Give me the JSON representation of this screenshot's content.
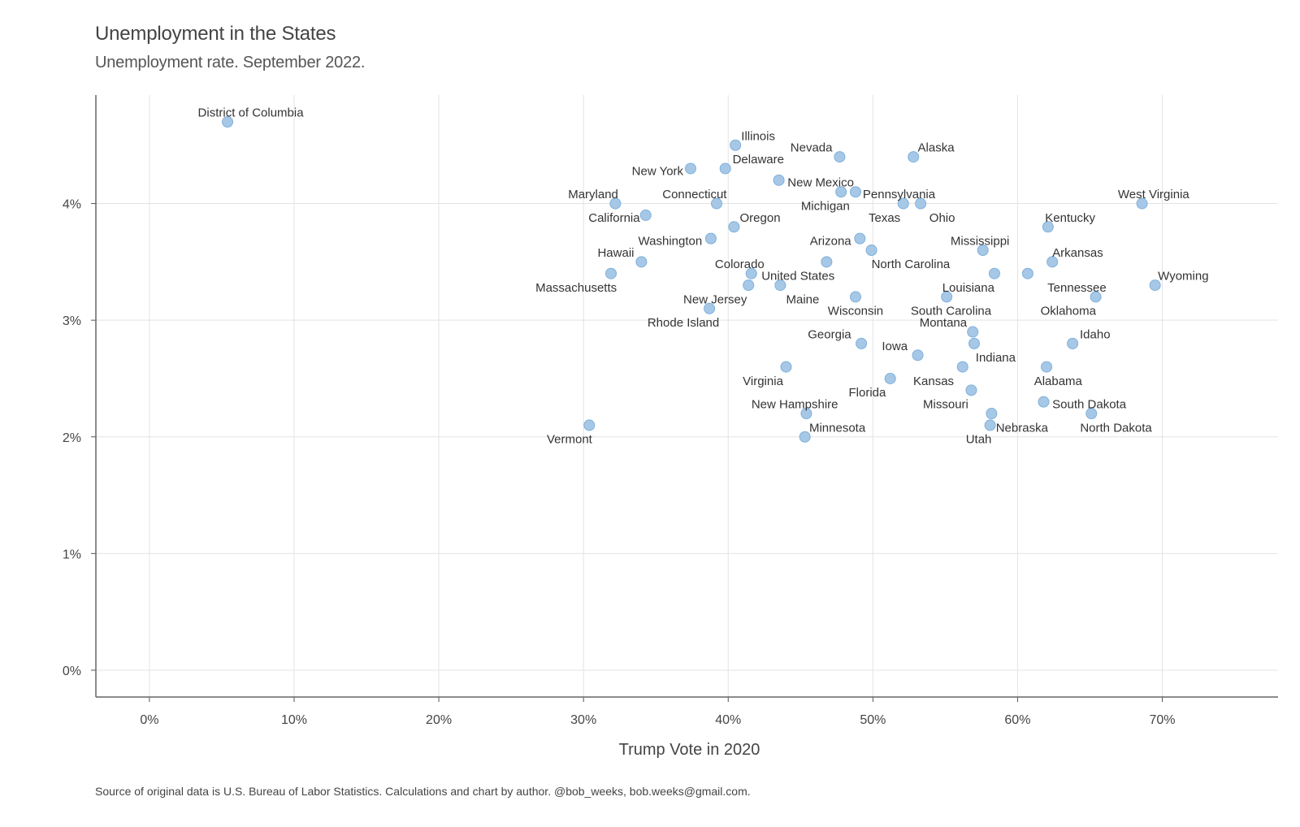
{
  "chart_data": {
    "type": "scatter",
    "title": "Unemployment in the States",
    "subtitle": "Unemployment rate. September 2022.",
    "xlabel": "Trump Vote in 2020",
    "ylabel": "",
    "caption": "Source of original data is U.S. Bureau of Labor Statistics. Calculations and chart by author. @bob_weeks, bob.weeks@gmail.com.",
    "xlim": [
      -3.7,
      78
    ],
    "ylim": [
      -0.23,
      4.93
    ],
    "x_ticks": [
      0,
      10,
      20,
      30,
      40,
      50,
      60,
      70
    ],
    "x_tick_labels": [
      "0%",
      "10%",
      "20%",
      "30%",
      "40%",
      "50%",
      "60%",
      "70%"
    ],
    "y_ticks": [
      0,
      1,
      2,
      3,
      4
    ],
    "y_tick_labels": [
      "0%",
      "1%",
      "2%",
      "3%",
      "4%"
    ],
    "grid": true,
    "point_color": "#a6c8e6",
    "point_stroke": "#7fb0dc",
    "points": [
      {
        "label": "District of Columbia",
        "x": 5.4,
        "y": 4.7,
        "lx": 7,
        "ly": 4.78,
        "anchor": "middle"
      },
      {
        "label": "Illinois",
        "x": 40.5,
        "y": 4.5,
        "lx": 40.9,
        "ly": 4.58,
        "anchor": "start"
      },
      {
        "label": "Nevada",
        "x": 47.7,
        "y": 4.4,
        "lx": 47.2,
        "ly": 4.48,
        "anchor": "end"
      },
      {
        "label": "Alaska",
        "x": 52.8,
        "y": 4.4,
        "lx": 53.1,
        "ly": 4.48,
        "anchor": "start"
      },
      {
        "label": "New York",
        "x": 37.4,
        "y": 4.3,
        "lx": 36.9,
        "ly": 4.28,
        "anchor": "end"
      },
      {
        "label": "Delaware",
        "x": 39.8,
        "y": 4.3,
        "lx": 40.3,
        "ly": 4.38,
        "anchor": "start"
      },
      {
        "label": "New Mexico",
        "x": 43.5,
        "y": 4.2,
        "lx": 44.1,
        "ly": 4.18,
        "anchor": "start"
      },
      {
        "label": "Michigan",
        "x": 47.8,
        "y": 4.1,
        "lx": 48.4,
        "ly": 3.98,
        "anchor": "end"
      },
      {
        "label": "Pennsylvania",
        "x": 48.8,
        "y": 4.1,
        "lx": 49.3,
        "ly": 4.08,
        "anchor": "start"
      },
      {
        "label": "Maryland",
        "x": 32.2,
        "y": 4.0,
        "lx": 32.4,
        "ly": 4.08,
        "anchor": "end"
      },
      {
        "label": "Connecticut",
        "x": 39.2,
        "y": 4.0,
        "lx": 39.9,
        "ly": 4.08,
        "anchor": "end"
      },
      {
        "label": "Texas",
        "x": 52.1,
        "y": 4.0,
        "lx": 51.9,
        "ly": 3.88,
        "anchor": "end"
      },
      {
        "label": "Ohio",
        "x": 53.3,
        "y": 4.0,
        "lx": 53.9,
        "ly": 3.88,
        "anchor": "start"
      },
      {
        "label": "West Virginia",
        "x": 68.6,
        "y": 4.0,
        "lx": 69.4,
        "ly": 4.08,
        "anchor": "middle"
      },
      {
        "label": "California",
        "x": 34.3,
        "y": 3.9,
        "lx": 33.9,
        "ly": 3.88,
        "anchor": "end"
      },
      {
        "label": "Oregon",
        "x": 40.4,
        "y": 3.8,
        "lx": 40.8,
        "ly": 3.88,
        "anchor": "start"
      },
      {
        "label": "Kentucky",
        "x": 62.1,
        "y": 3.8,
        "lx": 61.9,
        "ly": 3.88,
        "anchor": "start"
      },
      {
        "label": "Washington",
        "x": 38.8,
        "y": 3.7,
        "lx": 38.2,
        "ly": 3.68,
        "anchor": "end"
      },
      {
        "label": "Arizona",
        "x": 49.1,
        "y": 3.7,
        "lx": 48.5,
        "ly": 3.68,
        "anchor": "end"
      },
      {
        "label": "Mississippi",
        "x": 57.6,
        "y": 3.6,
        "lx": 57.4,
        "ly": 3.68,
        "anchor": "middle"
      },
      {
        "label": "North Carolina",
        "x": 49.9,
        "y": 3.6,
        "lx": 49.9,
        "ly": 3.48,
        "anchor": "start"
      },
      {
        "label": "Arkansas",
        "x": 62.4,
        "y": 3.5,
        "lx": 62.4,
        "ly": 3.58,
        "anchor": "start"
      },
      {
        "label": "Hawaii",
        "x": 34.0,
        "y": 3.5,
        "lx": 33.5,
        "ly": 3.58,
        "anchor": "end"
      },
      {
        "label": "Colorado",
        "x": 46.8,
        "y": 3.5,
        "lx": 42.5,
        "ly": 3.48,
        "anchor": "end"
      },
      {
        "label": "Massachusetts",
        "x": 31.9,
        "y": 3.4,
        "lx": 32.3,
        "ly": 3.28,
        "anchor": "end"
      },
      {
        "label": "United States",
        "x": 41.6,
        "y": 3.4,
        "lx": 42.3,
        "ly": 3.38,
        "anchor": "start"
      },
      {
        "label": "Louisiana",
        "x": 58.4,
        "y": 3.4,
        "lx": 58.4,
        "ly": 3.28,
        "anchor": "end"
      },
      {
        "label": "Tennessee",
        "x": 60.7,
        "y": 3.4,
        "lx": 64.1,
        "ly": 3.28,
        "anchor": "middle"
      },
      {
        "label": "Wyoming",
        "x": 69.5,
        "y": 3.3,
        "lx": 69.7,
        "ly": 3.38,
        "anchor": "start"
      },
      {
        "label": "New Jersey",
        "x": 41.4,
        "y": 3.3,
        "lx": 41.3,
        "ly": 3.18,
        "anchor": "end"
      },
      {
        "label": "Maine",
        "x": 43.6,
        "y": 3.3,
        "lx": 44.0,
        "ly": 3.18,
        "anchor": "start"
      },
      {
        "label": "Wisconsin",
        "x": 48.8,
        "y": 3.2,
        "lx": 48.8,
        "ly": 3.08,
        "anchor": "middle"
      },
      {
        "label": "South Carolina",
        "x": 55.1,
        "y": 3.2,
        "lx": 55.4,
        "ly": 3.08,
        "anchor": "middle"
      },
      {
        "label": "Oklahoma",
        "x": 65.4,
        "y": 3.2,
        "lx": 63.5,
        "ly": 3.08,
        "anchor": "middle"
      },
      {
        "label": "Rhode Island",
        "x": 38.7,
        "y": 3.1,
        "lx": 36.9,
        "ly": 2.98,
        "anchor": "middle"
      },
      {
        "label": "Montana",
        "x": 56.9,
        "y": 2.9,
        "lx": 56.5,
        "ly": 2.98,
        "anchor": "end"
      },
      {
        "label": "Georgia",
        "x": 49.2,
        "y": 2.8,
        "lx": 48.5,
        "ly": 2.88,
        "anchor": "end"
      },
      {
        "label": "Indiana",
        "x": 57.0,
        "y": 2.8,
        "lx": 57.1,
        "ly": 2.68,
        "anchor": "start"
      },
      {
        "label": "Idaho",
        "x": 63.8,
        "y": 2.8,
        "lx": 64.3,
        "ly": 2.88,
        "anchor": "start"
      },
      {
        "label": "Iowa",
        "x": 53.1,
        "y": 2.7,
        "lx": 52.4,
        "ly": 2.78,
        "anchor": "end"
      },
      {
        "label": "Virginia",
        "x": 44.0,
        "y": 2.6,
        "lx": 43.8,
        "ly": 2.48,
        "anchor": "end"
      },
      {
        "label": "Kansas",
        "x": 56.2,
        "y": 2.6,
        "lx": 55.6,
        "ly": 2.48,
        "anchor": "end"
      },
      {
        "label": "Alabama",
        "x": 62.0,
        "y": 2.6,
        "lx": 62.8,
        "ly": 2.48,
        "anchor": "middle"
      },
      {
        "label": "Florida",
        "x": 51.2,
        "y": 2.5,
        "lx": 50.9,
        "ly": 2.38,
        "anchor": "end"
      },
      {
        "label": "Missouri",
        "x": 56.8,
        "y": 2.4,
        "lx": 56.6,
        "ly": 2.28,
        "anchor": "end"
      },
      {
        "label": "South Dakota",
        "x": 61.8,
        "y": 2.3,
        "lx": 62.4,
        "ly": 2.28,
        "anchor": "start"
      },
      {
        "label": "New Hampshire",
        "x": 45.4,
        "y": 2.2,
        "lx": 44.6,
        "ly": 2.28,
        "anchor": "middle"
      },
      {
        "label": "Nebraska",
        "x": 58.2,
        "y": 2.2,
        "lx": 58.5,
        "ly": 2.08,
        "anchor": "start"
      },
      {
        "label": "North Dakota",
        "x": 65.1,
        "y": 2.2,
        "lx": 66.8,
        "ly": 2.08,
        "anchor": "middle"
      },
      {
        "label": "Vermont",
        "x": 30.4,
        "y": 2.1,
        "lx": 30.6,
        "ly": 1.98,
        "anchor": "end"
      },
      {
        "label": "Minnesota",
        "x": 45.3,
        "y": 2.0,
        "lx": 45.6,
        "ly": 2.08,
        "anchor": "start"
      },
      {
        "label": "Utah",
        "x": 58.1,
        "y": 2.1,
        "lx": 58.2,
        "ly": 1.98,
        "anchor": "end"
      }
    ]
  }
}
